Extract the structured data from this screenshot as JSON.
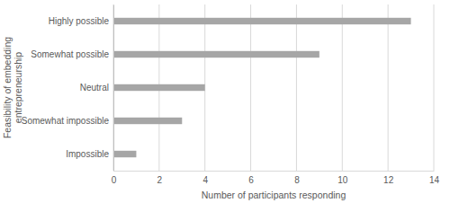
{
  "chart_data": {
    "type": "bar",
    "orientation": "horizontal",
    "categories": [
      "Highly possible",
      "Somewhat possible",
      "Neutral",
      "Somewhat impossible",
      "Impossible"
    ],
    "values": [
      13,
      9,
      4,
      3,
      1
    ],
    "color": "#a6a6a6",
    "x_label": "Number of participants responding",
    "y_label": "Feasibility of embedding entrepreneurship",
    "xlim": [
      0,
      14
    ],
    "xticks": [
      0,
      2,
      4,
      6,
      8,
      10,
      12,
      14
    ],
    "grid": true
  }
}
